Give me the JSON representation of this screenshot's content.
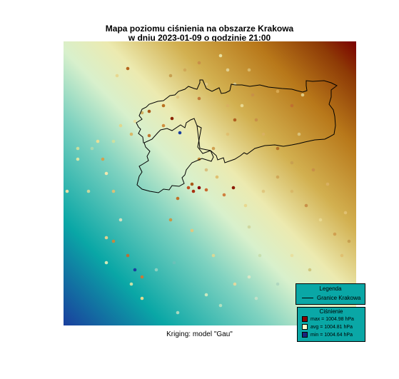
{
  "title_line1": "Mapa poziomu ciśnienia na obszarze Krakowa",
  "title_line2": "w dniu 2023-01-09 o godzinie 21:00",
  "subtitle": "Kriging: model \"Gau\"",
  "legend": {
    "title": "Legenda",
    "boundary_label": "Granice Krakowa",
    "pressure_title": "Ciśnienie",
    "max_label": "max =  1004.98 hPa",
    "avg_label": "avg =  1004.81 hPa",
    "min_label": "min =  1004.64 hPa",
    "max_color": "#8b0000",
    "avg_color": "#ffffcc",
    "min_color": "#1a237e"
  },
  "chart_data": {
    "type": "heatmap",
    "title": "Mapa poziomu ciśnienia na obszarze Krakowa\nw dniu 2023-01-09 o godzinie 21:00",
    "subtitle": "Kriging: model \"Gau\"",
    "unit": "hPa",
    "max": 1004.98,
    "avg": 1004.81,
    "min": 1004.64,
    "color_scale": [
      "#1a3f9e",
      "#0aa7a6",
      "#d6efc8",
      "#e8e8a8",
      "#c49a2e",
      "#8b3a07",
      "#7a0000"
    ],
    "gradient_direction": "increases toward upper-right"
  }
}
